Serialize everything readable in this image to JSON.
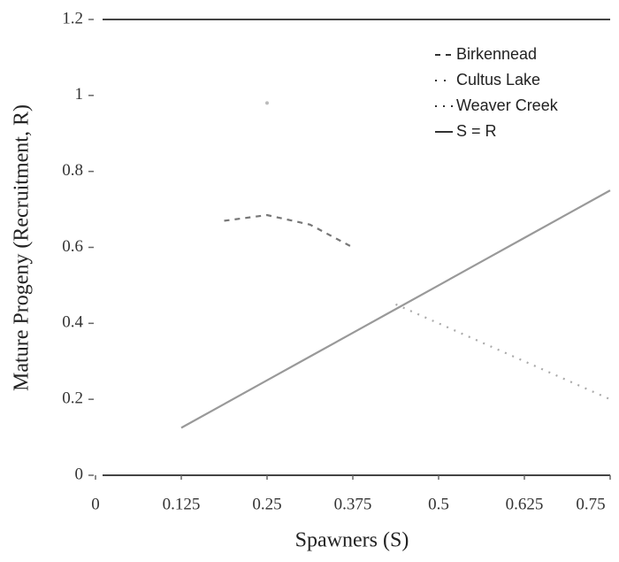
{
  "chart_data": {
    "type": "line",
    "xlabel": "Spawners (S)",
    "ylabel": "Mature Progeny (Recruitment, R)",
    "x": [
      0.125,
      0.1875,
      0.25,
      0.3125,
      0.375,
      0.4375,
      0.5,
      0.5625,
      0.625,
      0.6875,
      0.75
    ],
    "series": [
      {
        "name": "Birkennead",
        "color": "#777777",
        "dash": "6 6",
        "values": [
          null,
          0.67,
          0.685,
          0.66,
          0.6,
          null,
          null,
          null,
          null,
          null,
          null
        ]
      },
      {
        "name": "Cultus Lake",
        "color": "#bbbbbb",
        "dash": "2 8",
        "values": [
          null,
          null,
          0.98,
          null,
          null,
          null,
          null,
          null,
          null,
          null,
          null
        ]
      },
      {
        "name": "Weaver Creek",
        "color": "#aaaaaa",
        "dash": "2 7",
        "values": [
          null,
          null,
          null,
          null,
          null,
          0.45,
          0.4,
          0.35,
          0.3,
          0.25,
          0.2
        ]
      },
      {
        "name": "S = R",
        "color": "#999999",
        "dash": "",
        "values": [
          0.125,
          0.1875,
          0.25,
          0.3125,
          0.375,
          0.4375,
          0.5,
          0.5625,
          0.625,
          0.6875,
          0.75
        ]
      }
    ],
    "xlim": [
      0,
      0.75
    ],
    "xticks": [
      0,
      0.125,
      0.25,
      0.375,
      0.5,
      0.625,
      0.75
    ],
    "ylim": [
      0,
      1.2
    ],
    "yticks": [
      0,
      0.2,
      0.4,
      0.6,
      0.8,
      1,
      1.2
    ],
    "grid": false,
    "legend": "upper right"
  }
}
